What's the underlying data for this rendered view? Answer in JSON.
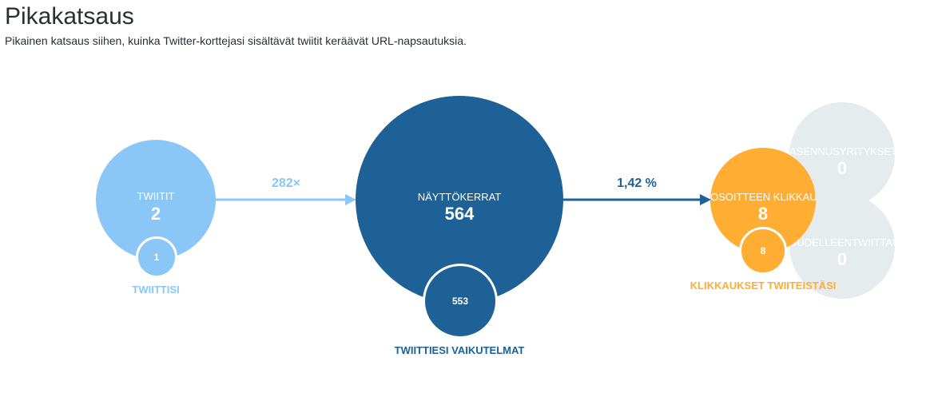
{
  "header": {
    "title": "Pikakatsaus",
    "subtitle": "Pikainen katsaus siihen, kuinka Twitter-korttejasi sisältävät twiitit keräävät URL-napsautuksia."
  },
  "overview": {
    "tweets": {
      "label": "TWIITIT",
      "value": "2",
      "sub_value": "1",
      "caption": "TWIITTISI",
      "color": "#8ac7f7"
    },
    "multiplier": {
      "text": "282×",
      "color": "#8ac7f7"
    },
    "impressions": {
      "label": "NÄYTTÖKERRAT",
      "value": "564",
      "sub_value": "553",
      "caption": "TWIITTIESI VAIKUTELMAT",
      "color": "#1d6196"
    },
    "click_rate": {
      "text": "1,42 %",
      "color": "#1d6196"
    },
    "url_clicks": {
      "label": "OSOITTEEN KLIKKAUKSET",
      "value": "8",
      "sub_value": "8",
      "caption": "KLIKKAUKSET TWIITEISTÄSI",
      "color": "#ffad33"
    },
    "installs": {
      "label": "ASENNUSYRITYKSET",
      "value": "0",
      "color": "#e6ebed"
    },
    "retweets": {
      "label": "UUDELLEENTWIITTAUKSET",
      "value": "0",
      "color": "#e6ebed"
    }
  }
}
